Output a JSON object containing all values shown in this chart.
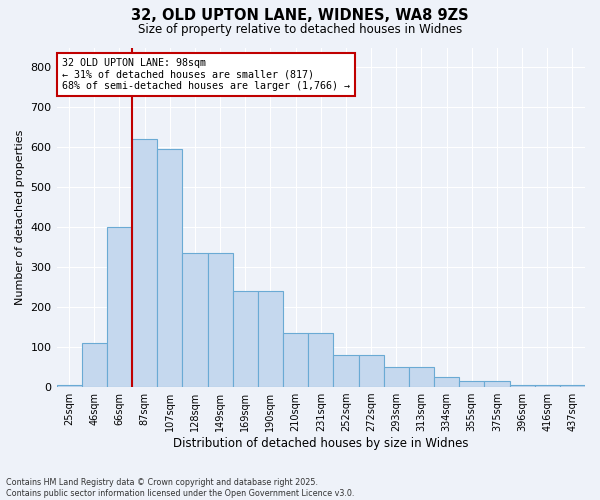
{
  "title_line1": "32, OLD UPTON LANE, WIDNES, WA8 9ZS",
  "title_line2": "Size of property relative to detached houses in Widnes",
  "xlabel": "Distribution of detached houses by size in Widnes",
  "ylabel": "Number of detached properties",
  "categories": [
    "25sqm",
    "46sqm",
    "66sqm",
    "87sqm",
    "107sqm",
    "128sqm",
    "149sqm",
    "169sqm",
    "190sqm",
    "210sqm",
    "231sqm",
    "252sqm",
    "272sqm",
    "293sqm",
    "313sqm",
    "334sqm",
    "355sqm",
    "375sqm",
    "396sqm",
    "416sqm",
    "437sqm"
  ],
  "bar_values": [
    5,
    110,
    400,
    620,
    595,
    335,
    335,
    240,
    240,
    135,
    135,
    80,
    80,
    50,
    50,
    25,
    15,
    15,
    5,
    5,
    5
  ],
  "bar_color": "#c5d8ee",
  "bar_edge_color": "#6aaad4",
  "vline_x": 2.5,
  "vline_color": "#c00000",
  "annotation_title": "32 OLD UPTON LANE: 98sqm",
  "annotation_line2": "← 31% of detached houses are smaller (817)",
  "annotation_line3": "68% of semi-detached houses are larger (1,766) →",
  "annotation_box_color": "#c00000",
  "ylim": [
    0,
    850
  ],
  "yticks": [
    0,
    100,
    200,
    300,
    400,
    500,
    600,
    700,
    800
  ],
  "background_color": "#eef2f9",
  "footer_line1": "Contains HM Land Registry data © Crown copyright and database right 2025.",
  "footer_line2": "Contains public sector information licensed under the Open Government Licence v3.0."
}
